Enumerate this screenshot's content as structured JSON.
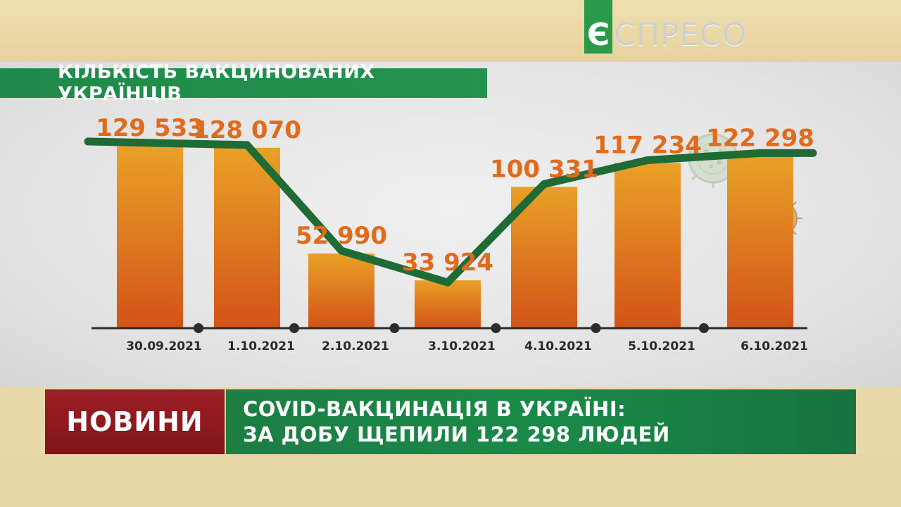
{
  "logo": {
    "mark": "Є",
    "text": "СПРЕСО"
  },
  "chart_title": "КІЛЬКІСТЬ ВАКЦИНОВАНИХ УКРАЇНЦІВ",
  "chart_data": {
    "type": "bar",
    "title": "КІЛЬКІСТЬ ВАКЦИНОВАНИХ УКРАЇНЦІВ",
    "categories": [
      "30.09.2021",
      "1.10.2021",
      "2.10.2021",
      "3.10.2021",
      "4.10.2021",
      "5.10.2021",
      "6.10.2021"
    ],
    "values": [
      129533,
      128070,
      52990,
      33924,
      100331,
      117234,
      122298
    ],
    "value_labels": [
      "129 533",
      "128 070",
      "52 990",
      "33 924",
      "100 331",
      "117 234",
      "122 298"
    ],
    "overlay": "line",
    "ylim": [
      0,
      135000
    ],
    "grid": false,
    "colors": {
      "bar_top": "#e79a24",
      "bar_bottom": "#d4561a",
      "line": "#1f6b35",
      "label": "#e06b1c",
      "axis": "#2c2c2c"
    }
  },
  "news": {
    "tag": "НОВИНИ",
    "headline_line1": "COVID-ВАКЦИНАЦІЯ В УКРАЇНІ:",
    "headline_line2": "ЗА ДОБУ ЩЕПИЛИ 122 298 ЛЮДЕЙ"
  }
}
